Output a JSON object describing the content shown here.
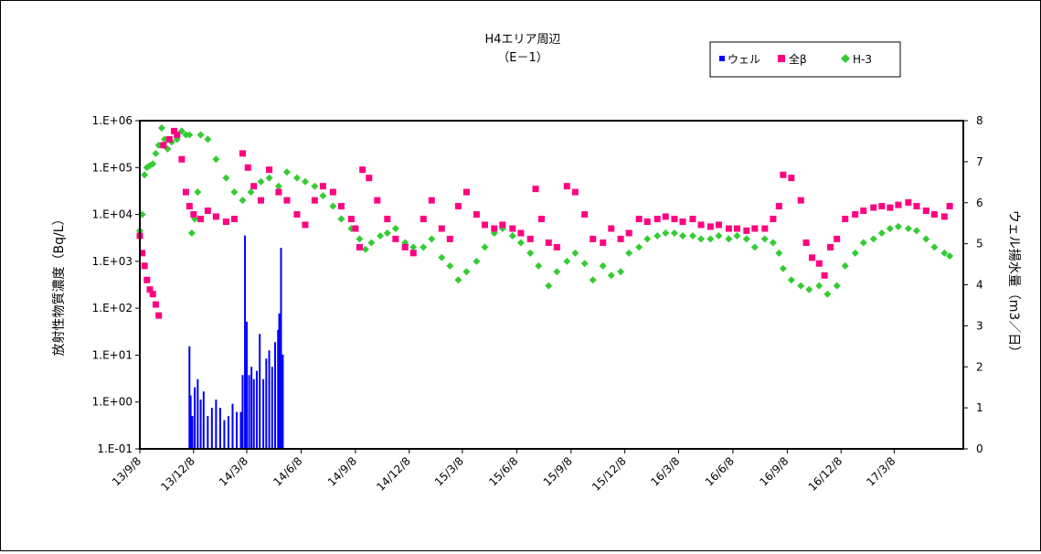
{
  "chart_data": {
    "type": "scatter",
    "title": "H4エリア周辺",
    "subtitle": "（E－1）",
    "ylabel_left": "放射性物質濃度（Bq/L）",
    "ylabel_right": "ウェル揚水量（m3／日）",
    "left_axis": {
      "scale": "log",
      "range": [
        0.1,
        1000000
      ],
      "tick_labels": [
        "1.E-01",
        "1.E+00",
        "1.E+01",
        "1.E+02",
        "1.E+03",
        "1.E+04",
        "1.E+05",
        "1.E+06"
      ]
    },
    "right_axis": {
      "scale": "linear",
      "range": [
        0,
        8
      ],
      "tick_labels": [
        "0",
        "1",
        "2",
        "3",
        "4",
        "5",
        "6",
        "7",
        "8"
      ]
    },
    "x_tick_labels": [
      "13/9/8",
      "13/12/8",
      "14/3/8",
      "14/6/8",
      "14/9/8",
      "14/12/8",
      "15/3/8",
      "15/6/8",
      "15/9/8",
      "15/12/8",
      "16/3/8",
      "16/6/8",
      "16/9/8",
      "16/12/8",
      "17/3/8"
    ],
    "legend_placement": "top-right",
    "legend": [
      {
        "name": "ウェル",
        "color": "#0000ff",
        "marker": "square-small"
      },
      {
        "name": "全β",
        "color": "#ff0080",
        "marker": "square"
      },
      {
        "name": "H-3",
        "color": "#33cc33",
        "marker": "diamond"
      }
    ],
    "series": [
      {
        "name": "全β",
        "color": "#ff0080",
        "axis": "left",
        "points": [
          [
            "2013-09-08",
            3500
          ],
          [
            "2013-09-12",
            1500
          ],
          [
            "2013-09-16",
            800
          ],
          [
            "2013-09-20",
            400
          ],
          [
            "2013-09-25",
            250
          ],
          [
            "2013-09-30",
            200
          ],
          [
            "2013-10-05",
            120
          ],
          [
            "2013-10-10",
            70
          ],
          [
            "2013-10-18",
            300000
          ],
          [
            "2013-10-28",
            400000
          ],
          [
            "2013-11-05",
            600000
          ],
          [
            "2013-11-10",
            500000
          ],
          [
            "2013-11-18",
            150000
          ],
          [
            "2013-11-25",
            30000
          ],
          [
            "2013-12-01",
            15000
          ],
          [
            "2013-12-08",
            10000
          ],
          [
            "2013-12-20",
            8000
          ],
          [
            "2014-01-01",
            12000
          ],
          [
            "2014-01-15",
            9000
          ],
          [
            "2014-02-01",
            7000
          ],
          [
            "2014-02-15",
            8000
          ],
          [
            "2014-03-01",
            200000
          ],
          [
            "2014-03-10",
            100000
          ],
          [
            "2014-03-20",
            40000
          ],
          [
            "2014-04-01",
            20000
          ],
          [
            "2014-04-15",
            90000
          ],
          [
            "2014-05-01",
            30000
          ],
          [
            "2014-05-15",
            20000
          ],
          [
            "2014-06-01",
            10000
          ],
          [
            "2014-06-15",
            6000
          ],
          [
            "2014-07-01",
            20000
          ],
          [
            "2014-07-15",
            40000
          ],
          [
            "2014-08-01",
            30000
          ],
          [
            "2014-08-15",
            15000
          ],
          [
            "2014-09-01",
            8000
          ],
          [
            "2014-09-08",
            5000
          ],
          [
            "2014-09-15",
            2000
          ],
          [
            "2014-09-20",
            90000
          ],
          [
            "2014-10-01",
            60000
          ],
          [
            "2014-10-15",
            20000
          ],
          [
            "2014-11-01",
            8000
          ],
          [
            "2014-11-15",
            3000
          ],
          [
            "2014-12-01",
            2000
          ],
          [
            "2014-12-15",
            1500
          ],
          [
            "2015-01-01",
            8000
          ],
          [
            "2015-01-15",
            20000
          ],
          [
            "2015-02-01",
            5000
          ],
          [
            "2015-02-15",
            3000
          ],
          [
            "2015-03-01",
            15000
          ],
          [
            "2015-03-15",
            30000
          ],
          [
            "2015-04-01",
            10000
          ],
          [
            "2015-04-15",
            6000
          ],
          [
            "2015-05-01",
            5000
          ],
          [
            "2015-05-15",
            6000
          ],
          [
            "2015-06-01",
            5000
          ],
          [
            "2015-06-15",
            4000
          ],
          [
            "2015-07-01",
            3000
          ],
          [
            "2015-07-10",
            35000
          ],
          [
            "2015-07-20",
            8000
          ],
          [
            "2015-08-01",
            2500
          ],
          [
            "2015-08-15",
            2000
          ],
          [
            "2015-09-01",
            40000
          ],
          [
            "2015-09-15",
            30000
          ],
          [
            "2015-10-01",
            10000
          ],
          [
            "2015-10-15",
            3000
          ],
          [
            "2015-11-01",
            2500
          ],
          [
            "2015-11-15",
            5000
          ],
          [
            "2015-12-01",
            3000
          ],
          [
            "2015-12-15",
            4000
          ],
          [
            "2016-01-01",
            8000
          ],
          [
            "2016-01-15",
            7000
          ],
          [
            "2016-02-01",
            8000
          ],
          [
            "2016-02-15",
            9000
          ],
          [
            "2016-03-01",
            8000
          ],
          [
            "2016-03-15",
            7000
          ],
          [
            "2016-04-01",
            8000
          ],
          [
            "2016-04-15",
            6000
          ],
          [
            "2016-05-01",
            5500
          ],
          [
            "2016-05-15",
            6000
          ],
          [
            "2016-06-01",
            5000
          ],
          [
            "2016-06-15",
            5000
          ],
          [
            "2016-07-01",
            4500
          ],
          [
            "2016-07-15",
            5000
          ],
          [
            "2016-08-01",
            5000
          ],
          [
            "2016-08-15",
            8000
          ],
          [
            "2016-08-25",
            15000
          ],
          [
            "2016-09-01",
            70000
          ],
          [
            "2016-09-15",
            60000
          ],
          [
            "2016-10-01",
            20000
          ],
          [
            "2016-10-10",
            2500
          ],
          [
            "2016-10-20",
            1200
          ],
          [
            "2016-11-01",
            900
          ],
          [
            "2016-11-10",
            500
          ],
          [
            "2016-11-20",
            2000
          ],
          [
            "2016-12-01",
            3000
          ],
          [
            "2016-12-15",
            8000
          ],
          [
            "2017-01-01",
            10000
          ],
          [
            "2017-01-15",
            12000
          ],
          [
            "2017-02-01",
            14000
          ],
          [
            "2017-02-15",
            15000
          ],
          [
            "2017-03-01",
            14000
          ],
          [
            "2017-03-15",
            16000
          ],
          [
            "2017-04-01",
            18000
          ],
          [
            "2017-04-15",
            15000
          ],
          [
            "2017-05-01",
            12000
          ],
          [
            "2017-05-15",
            10000
          ],
          [
            "2017-06-01",
            9000
          ],
          [
            "2017-06-10",
            15000
          ]
        ]
      },
      {
        "name": "H-3",
        "color": "#33cc33",
        "axis": "left",
        "points": [
          [
            "2013-09-08",
            4500
          ],
          [
            "2013-09-12",
            10000
          ],
          [
            "2013-09-16",
            70000
          ],
          [
            "2013-09-20",
            100000
          ],
          [
            "2013-09-25",
            110000
          ],
          [
            "2013-09-30",
            120000
          ],
          [
            "2013-10-05",
            200000
          ],
          [
            "2013-10-10",
            300000
          ],
          [
            "2013-10-15",
            700000
          ],
          [
            "2013-10-20",
            400000
          ],
          [
            "2013-10-25",
            250000
          ],
          [
            "2013-11-01",
            350000
          ],
          [
            "2013-11-10",
            400000
          ],
          [
            "2013-11-18",
            600000
          ],
          [
            "2013-11-25",
            500000
          ],
          [
            "2013-12-01",
            500000
          ],
          [
            "2013-12-05",
            4000
          ],
          [
            "2013-12-10",
            8000
          ],
          [
            "2013-12-15",
            30000
          ],
          [
            "2013-12-20",
            500000
          ],
          [
            "2014-01-01",
            400000
          ],
          [
            "2014-01-15",
            150000
          ],
          [
            "2014-02-01",
            60000
          ],
          [
            "2014-02-15",
            30000
          ],
          [
            "2014-03-01",
            20000
          ],
          [
            "2014-03-15",
            30000
          ],
          [
            "2014-04-01",
            50000
          ],
          [
            "2014-04-15",
            60000
          ],
          [
            "2014-05-01",
            40000
          ],
          [
            "2014-05-15",
            80000
          ],
          [
            "2014-06-01",
            60000
          ],
          [
            "2014-06-15",
            50000
          ],
          [
            "2014-07-01",
            40000
          ],
          [
            "2014-07-15",
            25000
          ],
          [
            "2014-08-01",
            15000
          ],
          [
            "2014-08-15",
            8000
          ],
          [
            "2014-09-01",
            5000
          ],
          [
            "2014-09-15",
            3000
          ],
          [
            "2014-09-25",
            1800
          ],
          [
            "2014-10-05",
            2500
          ],
          [
            "2014-10-20",
            3500
          ],
          [
            "2014-11-01",
            4000
          ],
          [
            "2014-11-15",
            5000
          ],
          [
            "2014-12-01",
            2500
          ],
          [
            "2014-12-15",
            2000
          ],
          [
            "2015-01-01",
            2000
          ],
          [
            "2015-01-15",
            3000
          ],
          [
            "2015-02-01",
            1200
          ],
          [
            "2015-02-15",
            800
          ],
          [
            "2015-03-01",
            400
          ],
          [
            "2015-03-15",
            600
          ],
          [
            "2015-04-01",
            1000
          ],
          [
            "2015-04-15",
            2000
          ],
          [
            "2015-05-01",
            4000
          ],
          [
            "2015-05-15",
            5000
          ],
          [
            "2015-06-01",
            3500
          ],
          [
            "2015-06-15",
            2500
          ],
          [
            "2015-07-01",
            1500
          ],
          [
            "2015-07-15",
            800
          ],
          [
            "2015-08-01",
            300
          ],
          [
            "2015-08-15",
            600
          ],
          [
            "2015-09-01",
            1000
          ],
          [
            "2015-09-15",
            1500
          ],
          [
            "2015-10-01",
            900
          ],
          [
            "2015-10-15",
            400
          ],
          [
            "2015-11-01",
            800
          ],
          [
            "2015-11-15",
            500
          ],
          [
            "2015-12-01",
            600
          ],
          [
            "2015-12-15",
            1500
          ],
          [
            "2016-01-01",
            2000
          ],
          [
            "2016-01-15",
            3000
          ],
          [
            "2016-02-01",
            3500
          ],
          [
            "2016-02-15",
            4000
          ],
          [
            "2016-03-01",
            4000
          ],
          [
            "2016-03-15",
            3500
          ],
          [
            "2016-04-01",
            3500
          ],
          [
            "2016-04-15",
            3000
          ],
          [
            "2016-05-01",
            3000
          ],
          [
            "2016-05-15",
            3500
          ],
          [
            "2016-06-01",
            3000
          ],
          [
            "2016-06-15",
            3500
          ],
          [
            "2016-07-01",
            3000
          ],
          [
            "2016-07-15",
            2000
          ],
          [
            "2016-08-01",
            3000
          ],
          [
            "2016-08-15",
            2500
          ],
          [
            "2016-08-25",
            1500
          ],
          [
            "2016-09-01",
            700
          ],
          [
            "2016-09-15",
            400
          ],
          [
            "2016-10-01",
            300
          ],
          [
            "2016-10-15",
            250
          ],
          [
            "2016-11-01",
            300
          ],
          [
            "2016-11-15",
            200
          ],
          [
            "2016-12-01",
            300
          ],
          [
            "2016-12-15",
            800
          ],
          [
            "2017-01-01",
            1500
          ],
          [
            "2017-01-15",
            2500
          ],
          [
            "2017-02-01",
            3000
          ],
          [
            "2017-02-15",
            4000
          ],
          [
            "2017-03-01",
            5000
          ],
          [
            "2017-03-15",
            5500
          ],
          [
            "2017-04-01",
            5000
          ],
          [
            "2017-04-15",
            4500
          ],
          [
            "2017-05-01",
            3000
          ],
          [
            "2017-05-15",
            2000
          ],
          [
            "2017-06-01",
            1500
          ],
          [
            "2017-06-10",
            1300
          ]
        ]
      },
      {
        "name": "ウェル",
        "color": "#0000ff",
        "axis": "right",
        "type": "bar",
        "points": [
          [
            "2013-12-01",
            2.5
          ],
          [
            "2013-12-03",
            1.3
          ],
          [
            "2013-12-06",
            0.8
          ],
          [
            "2013-12-10",
            1.5
          ],
          [
            "2013-12-15",
            1.7
          ],
          [
            "2013-12-20",
            1.2
          ],
          [
            "2013-12-25",
            1.4
          ],
          [
            "2014-01-01",
            0.8
          ],
          [
            "2014-01-08",
            1.0
          ],
          [
            "2014-01-15",
            1.2
          ],
          [
            "2014-01-22",
            1.0
          ],
          [
            "2014-01-29",
            0.7
          ],
          [
            "2014-02-05",
            0.8
          ],
          [
            "2014-02-12",
            1.1
          ],
          [
            "2014-02-19",
            0.9
          ],
          [
            "2014-02-26",
            0.9
          ],
          [
            "2014-03-01",
            1.8
          ],
          [
            "2014-03-05",
            5.2
          ],
          [
            "2014-03-08",
            3.1
          ],
          [
            "2014-03-12",
            1.8
          ],
          [
            "2014-03-16",
            2.0
          ],
          [
            "2014-03-20",
            1.7
          ],
          [
            "2014-03-25",
            1.9
          ],
          [
            "2014-03-30",
            2.8
          ],
          [
            "2014-04-05",
            1.7
          ],
          [
            "2014-04-10",
            2.2
          ],
          [
            "2014-04-15",
            2.4
          ],
          [
            "2014-04-20",
            2.0
          ],
          [
            "2014-04-25",
            2.6
          ],
          [
            "2014-04-30",
            2.9
          ],
          [
            "2014-05-02",
            3.3
          ],
          [
            "2014-05-05",
            4.9
          ],
          [
            "2014-05-08",
            2.3
          ]
        ]
      }
    ]
  }
}
